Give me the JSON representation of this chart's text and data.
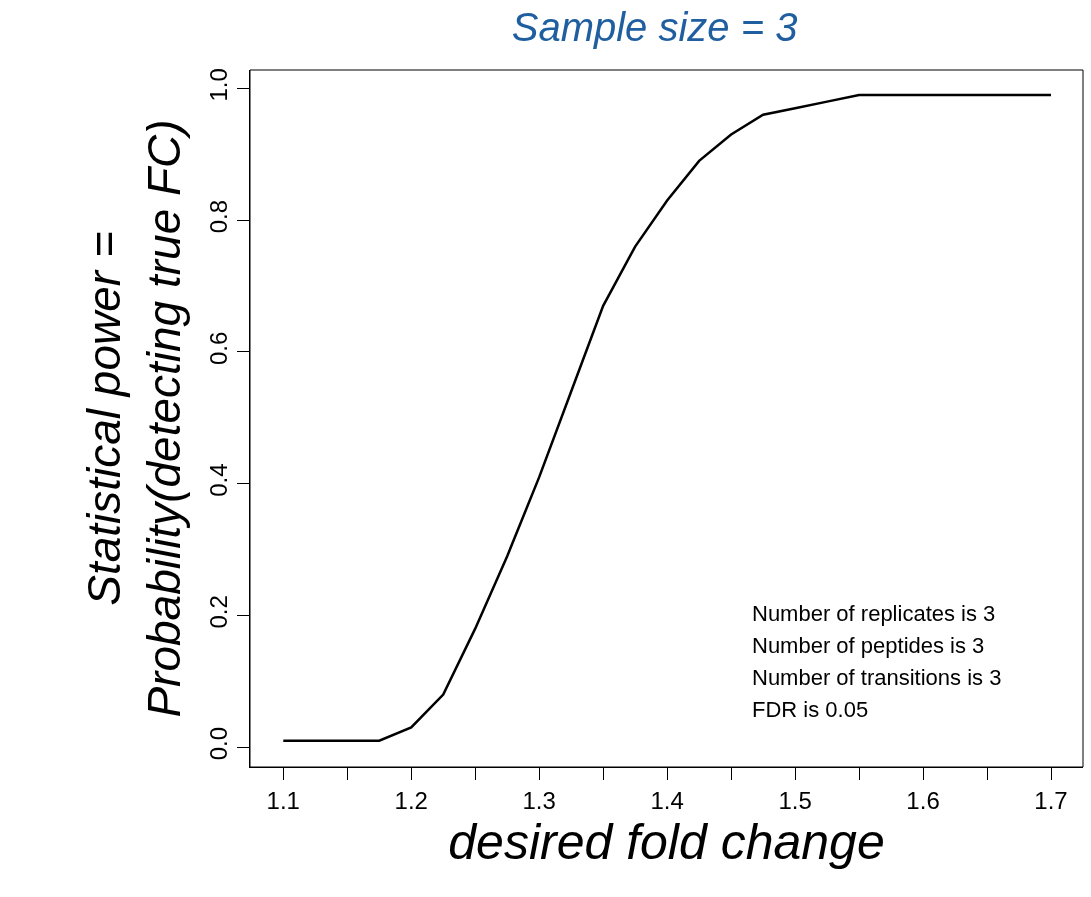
{
  "chart_data": {
    "type": "line",
    "title": "Sample size = 3",
    "xlabel": "desired fold change",
    "ylabel": "Statistical power =\nProbability(detecting true FC)",
    "x": [
      1.1,
      1.125,
      1.15,
      1.175,
      1.2,
      1.225,
      1.25,
      1.275,
      1.3,
      1.325,
      1.35,
      1.375,
      1.4,
      1.425,
      1.45,
      1.475,
      1.5,
      1.525,
      1.55,
      1.6,
      1.65,
      1.7
    ],
    "series": [
      {
        "color": "#000000",
        "values": [
          0.01,
          0.01,
          0.01,
          0.01,
          0.03,
          0.08,
          0.18,
          0.29,
          0.41,
          0.54,
          0.67,
          0.76,
          0.83,
          0.89,
          0.93,
          0.96,
          0.97,
          0.98,
          0.99,
          0.99,
          0.99,
          0.99
        ]
      }
    ],
    "xlim": [
      1.074,
      1.725
    ],
    "ylim": [
      -0.03,
      1.028
    ],
    "xticks": [
      1.1,
      {
        "value": 1.15,
        "label": null
      },
      1.2,
      {
        "value": 1.25,
        "label": null
      },
      1.3,
      {
        "value": 1.35,
        "label": null
      },
      1.4,
      {
        "value": 1.45,
        "label": null
      },
      1.5,
      {
        "value": 1.55,
        "label": null
      },
      1.6,
      {
        "value": 1.65,
        "label": null
      },
      1.7
    ],
    "yticks": [
      {
        "value": 0,
        "label": "0.0"
      },
      0.2,
      0.4,
      0.6,
      0.8,
      {
        "value": 1,
        "label": "1.0"
      }
    ],
    "annotations": [
      "Number of replicates is 3",
      "Number of peptides is 3",
      "Number of transitions is 3",
      "FDR is 0.05"
    ],
    "legend": false,
    "marker": "none",
    "line_style": "solid"
  }
}
